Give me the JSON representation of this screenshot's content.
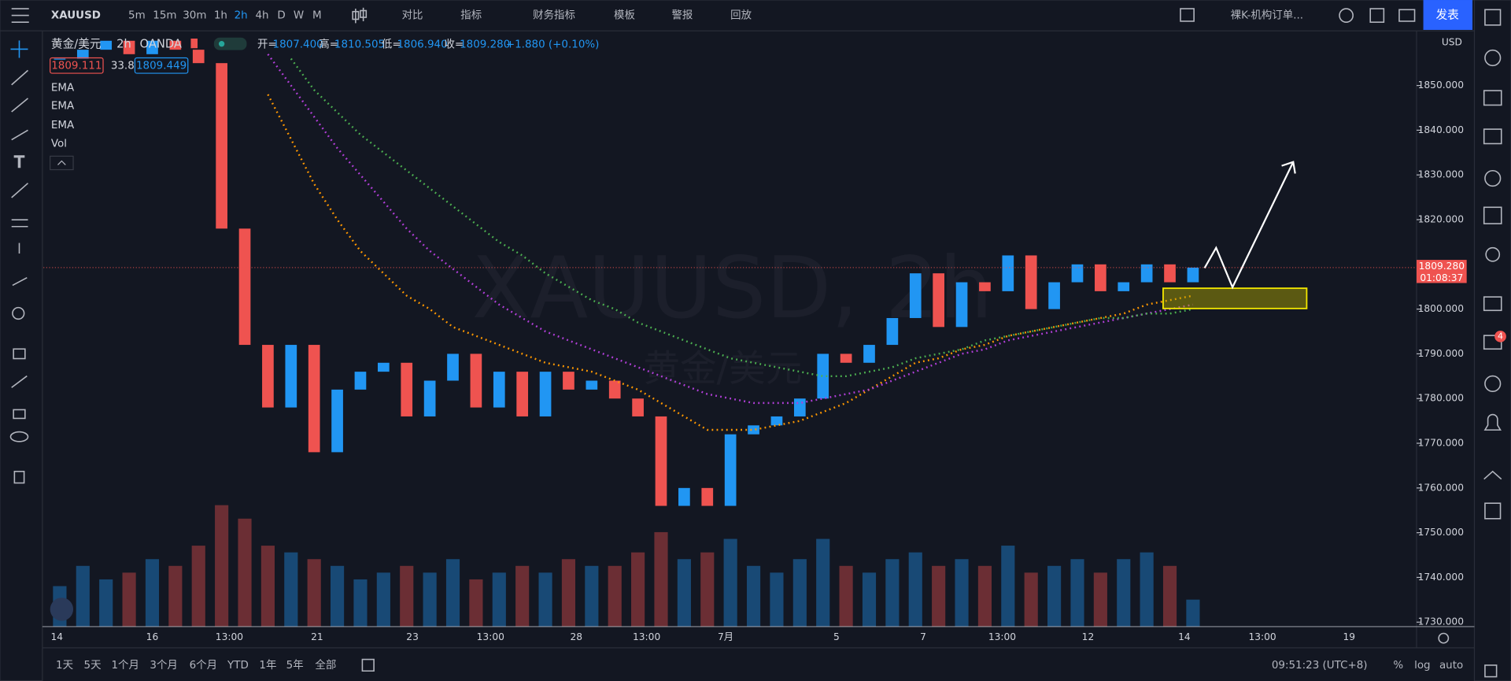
{
  "toolbar": {
    "symbol": "XAUUSD",
    "intervals": [
      "5m",
      "15m",
      "30m",
      "1h",
      "2h",
      "4h",
      "D",
      "W",
      "M"
    ],
    "active_interval": "2h",
    "buttons": [
      "对比",
      "指标",
      "财务指标",
      "模板",
      "警报",
      "回放"
    ],
    "layout_name": "裸K-机构订单...",
    "publish": "发表"
  },
  "legend": {
    "name": "黄金/美元",
    "interval": "2h",
    "exchange": "OANDA",
    "ohlc": [
      {
        "label": "开=",
        "value": "1807.400"
      },
      {
        "label": "高=",
        "value": "1810.505"
      },
      {
        "label": "低=",
        "value": "1806.940"
      },
      {
        "label": "收=",
        "value": "1809.280"
      }
    ],
    "change": "+1.880 (+0.10%)",
    "bid": "1809.111",
    "spread": "33.8",
    "ask": "1809.449"
  },
  "watermark": {
    "symbol": "XAUUSD, 2h",
    "name": "黄金/美元"
  },
  "chart_data": {
    "type": "candlestick",
    "closes": [
      1856,
      1858,
      1860,
      1857,
      1860,
      1858,
      1855,
      1818,
      1792,
      1778,
      1792,
      1768,
      1782,
      1786,
      1788,
      1776,
      1784,
      1790,
      1778,
      1786,
      1776,
      1786,
      1782,
      1784,
      1780,
      1776,
      1756,
      1760,
      1756,
      1772,
      1774,
      1776,
      1780,
      1790,
      1788,
      1792,
      1798,
      1808,
      1796,
      1806,
      1804,
      1812,
      1800,
      1806,
      1810,
      1804,
      1806,
      1810,
      1806,
      1809.28
    ],
    "volumes": [
      30,
      45,
      35,
      40,
      50,
      45,
      60,
      90,
      80,
      60,
      55,
      50,
      45,
      35,
      40,
      45,
      40,
      50,
      35,
      40,
      45,
      40,
      50,
      45,
      45,
      55,
      70,
      50,
      55,
      65,
      45,
      40,
      50,
      65,
      45,
      40,
      50,
      55,
      45,
      50,
      45,
      60,
      40,
      45,
      50,
      40,
      50,
      55,
      45,
      20
    ],
    "volume_name": "Vol",
    "series": [
      {
        "name": "EMA",
        "color": "#ff9800",
        "values": [
          null,
          null,
          null,
          null,
          null,
          null,
          null,
          null,
          null,
          1848,
          1838,
          1828,
          1820,
          1813,
          1808,
          1803,
          1800,
          1796,
          1794,
          1792,
          1790,
          1788,
          1787,
          1786,
          1784,
          1782,
          1779,
          1776,
          1773,
          1773,
          1773,
          1774,
          1775,
          1777,
          1779,
          1782,
          1785,
          1788,
          1789,
          1791,
          1792,
          1794,
          1795,
          1796,
          1797,
          1798,
          1799,
          1801,
          1802,
          1803
        ]
      },
      {
        "name": "EMA",
        "color": "#b23fd9",
        "values": [
          null,
          null,
          null,
          null,
          null,
          null,
          null,
          null,
          null,
          1857,
          1850,
          1843,
          1836,
          1830,
          1824,
          1818,
          1813,
          1809,
          1805,
          1801,
          1798,
          1795,
          1793,
          1791,
          1789,
          1787,
          1785,
          1783,
          1781,
          1780,
          1779,
          1779,
          1779,
          1780,
          1781,
          1782,
          1784,
          1786,
          1788,
          1790,
          1791,
          1793,
          1794,
          1795,
          1796,
          1797,
          1798,
          1799,
          1800,
          1801
        ]
      },
      {
        "name": "EMA",
        "color": "#4caf50",
        "values": [
          null,
          null,
          null,
          null,
          null,
          null,
          null,
          null,
          null,
          null,
          1856,
          1849,
          1844,
          1839,
          1835,
          1831,
          1827,
          1823,
          1819,
          1815,
          1812,
          1808,
          1805,
          1802,
          1800,
          1797,
          1795,
          1793,
          1791,
          1789,
          1788,
          1787,
          1786,
          1785,
          1785,
          1786,
          1787,
          1789,
          1790,
          1791,
          1793,
          1794,
          1795,
          1796,
          1797,
          1798,
          1798,
          1799,
          1799,
          1800
        ]
      }
    ],
    "ylim": [
      1729,
      1862
    ],
    "yticks": [
      {
        "value": 1730,
        "label": "1730.000"
      },
      {
        "value": 1740,
        "label": "1740.000"
      },
      {
        "value": 1750,
        "label": "1750.000"
      },
      {
        "value": 1760,
        "label": "1760.000"
      },
      {
        "value": 1770,
        "label": "1770.000"
      },
      {
        "value": 1780,
        "label": "1780.000"
      },
      {
        "value": 1790,
        "label": "1790.000"
      },
      {
        "value": 1800,
        "label": "1800.000"
      },
      {
        "value": 1810,
        "label": "1810.000"
      },
      {
        "value": 1820,
        "label": "1820.000"
      },
      {
        "value": 1830,
        "label": "1830.000"
      },
      {
        "value": 1840,
        "label": "1840.000"
      },
      {
        "value": 1850,
        "label": "1850.000"
      }
    ],
    "last_price": {
      "value": 1809.28,
      "label": "1809.280"
    },
    "countdown": "01:08:37",
    "currency": "USD",
    "x_labels": [
      "14",
      "16",
      "13:00",
      "21",
      "23",
      "13:00",
      "28",
      "13:00",
      "7月",
      "5",
      "7",
      "13:00",
      "12",
      "14",
      "13:00",
      "19"
    ],
    "up_color": "#2196f3",
    "down_color": "#ef5350"
  },
  "bottom_bar": {
    "ranges": [
      "1天",
      "5天",
      "1个月",
      "3个月",
      "6个月",
      "YTD",
      "1年",
      "5年",
      "全部"
    ],
    "time": "09:51:23 (UTC+8)",
    "options": [
      "%",
      "log",
      "auto"
    ]
  },
  "sidebar": {
    "badge": "4"
  }
}
